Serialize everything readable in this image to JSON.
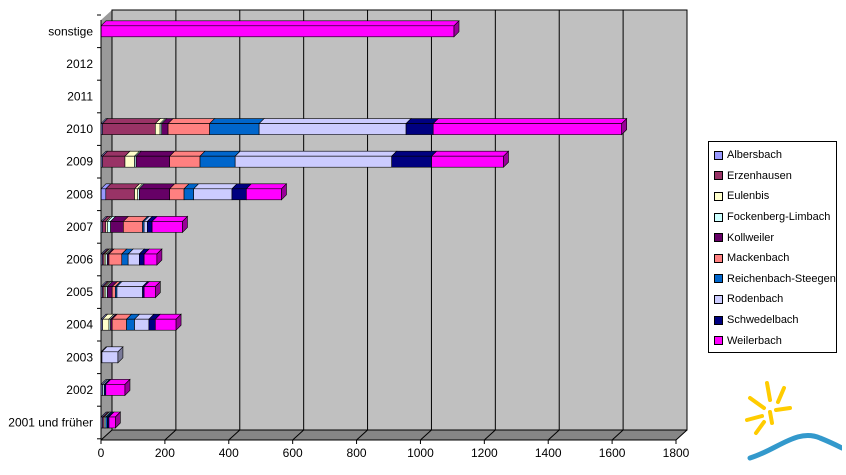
{
  "chart_data": {
    "type": "bar",
    "orientation": "horizontal",
    "stacked": true,
    "categories": [
      "2001 und früher",
      "2002",
      "2003",
      "2004",
      "2005",
      "2006",
      "2007",
      "2008",
      "2009",
      "2010",
      "2011",
      "2012",
      "sonstige"
    ],
    "xlim": [
      0,
      1800
    ],
    "x_ticks": [
      "0",
      "200",
      "400",
      "600",
      "800",
      "1000",
      "1200",
      "1400",
      "1600",
      "1800"
    ],
    "grid": "vertical",
    "legend_position": "right",
    "series": [
      {
        "name": "Albersbach",
        "color": "#9999ff",
        "values": [
          5,
          5,
          3,
          5,
          5,
          5,
          5,
          15,
          5,
          5,
          0,
          0,
          0
        ]
      },
      {
        "name": "Erzenhausen",
        "color": "#993366",
        "values": [
          5,
          0,
          0,
          0,
          5,
          5,
          10,
          90,
          70,
          165,
          0,
          0,
          0
        ]
      },
      {
        "name": "Eulenbis",
        "color": "#ffffcc",
        "values": [
          0,
          0,
          0,
          20,
          5,
          5,
          5,
          10,
          30,
          15,
          0,
          0,
          0
        ]
      },
      {
        "name": "Fockenberg-Limbach",
        "color": "#ccffff",
        "values": [
          5,
          5,
          0,
          5,
          5,
          5,
          10,
          5,
          5,
          5,
          0,
          0,
          0
        ]
      },
      {
        "name": "Kollweiler",
        "color": "#660066",
        "values": [
          0,
          0,
          0,
          5,
          15,
          5,
          40,
          95,
          105,
          20,
          0,
          0,
          0
        ]
      },
      {
        "name": "Mackenbach",
        "color": "#ff8080",
        "values": [
          0,
          0,
          0,
          45,
          10,
          40,
          60,
          45,
          95,
          130,
          0,
          0,
          0
        ]
      },
      {
        "name": "Reichenbach-Steegen",
        "color": "#0066cc",
        "values": [
          5,
          0,
          0,
          25,
          5,
          20,
          5,
          30,
          110,
          155,
          0,
          0,
          0
        ]
      },
      {
        "name": "Rodenbach",
        "color": "#ccccff",
        "values": [
          0,
          0,
          50,
          45,
          80,
          35,
          10,
          120,
          490,
          460,
          0,
          0,
          0
        ]
      },
      {
        "name": "Schwedelbach",
        "color": "#000080",
        "values": [
          5,
          5,
          0,
          20,
          5,
          15,
          15,
          45,
          125,
          85,
          0,
          0,
          0
        ]
      },
      {
        "name": "Weilerbach",
        "color": "#ff00ff",
        "values": [
          20,
          60,
          0,
          65,
          35,
          40,
          95,
          110,
          225,
          590,
          0,
          0,
          1105
        ]
      }
    ]
  },
  "legend": {
    "items": [
      {
        "label": "Albersbach",
        "color": "#9999ff"
      },
      {
        "label": "Erzenhausen",
        "color": "#993366"
      },
      {
        "label": "Eulenbis",
        "color": "#ffffcc"
      },
      {
        "label": "Fockenberg-Limbach",
        "color": "#ccffff"
      },
      {
        "label": "Kollweiler",
        "color": "#660066"
      },
      {
        "label": "Mackenbach",
        "color": "#ff8080"
      },
      {
        "label": "Reichenbach-Steegen",
        "color": "#0066cc"
      },
      {
        "label": "Rodenbach",
        "color": "#ccccff"
      },
      {
        "label": "Schwedelbach",
        "color": "#000080"
      },
      {
        "label": "Weilerbach",
        "color": "#ff00ff"
      }
    ]
  },
  "colors": {
    "plot_area": "#c0c0c0",
    "logo_sun": "#ffcc00",
    "logo_wave": "#3399cc"
  },
  "logo": {
    "icon": "sun-over-wave-logo"
  }
}
